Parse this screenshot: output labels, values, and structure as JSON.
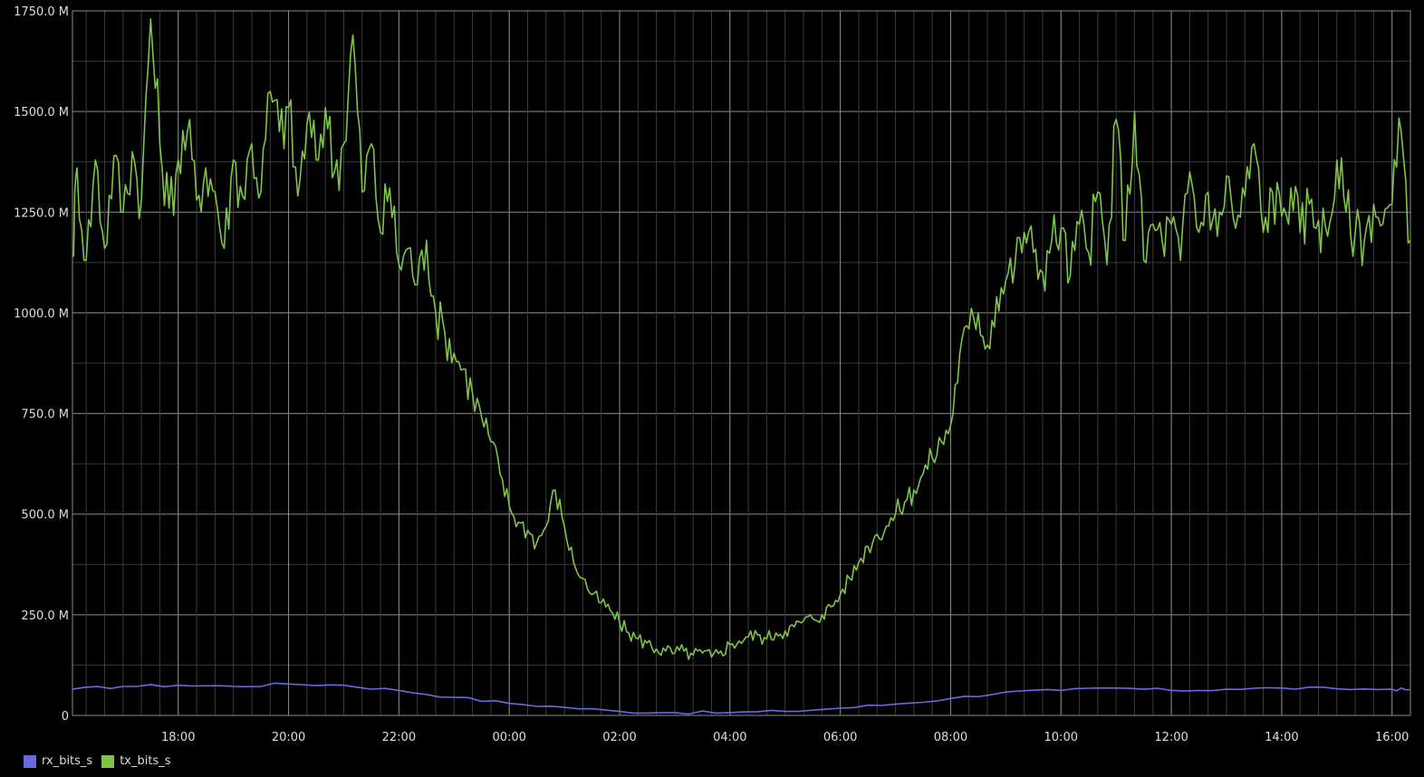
{
  "chart_data": {
    "type": "line",
    "xlabel": "",
    "ylabel": "",
    "ylim": [
      0,
      1750
    ],
    "y_unit": "bits/s (millions)",
    "y_ticks": [
      {
        "value": 0,
        "label": "0"
      },
      {
        "value": 250,
        "label": "250.0 M"
      },
      {
        "value": 500,
        "label": "500.0 M"
      },
      {
        "value": 750,
        "label": "750.0 M"
      },
      {
        "value": 1000,
        "label": "1000.0 M"
      },
      {
        "value": 1250,
        "label": "1250.0 M"
      },
      {
        "value": 1500,
        "label": "1500.0 M"
      },
      {
        "value": 1750,
        "label": "1750.0 M"
      }
    ],
    "x_ticks": [
      "18:00",
      "20:00",
      "22:00",
      "00:00",
      "02:00",
      "04:00",
      "06:00",
      "08:00",
      "10:00",
      "12:00",
      "14:00",
      "16:00"
    ],
    "x_range": [
      "16:05",
      "16:20"
    ],
    "grid": true,
    "legend_position": "bottom-left",
    "series": [
      {
        "name": "rx_bits_s",
        "color": "#6a6ae0",
        "points": [
          [
            "16:05",
            65
          ],
          [
            "17:00",
            72
          ],
          [
            "18:00",
            75
          ],
          [
            "19:00",
            72
          ],
          [
            "20:00",
            78
          ],
          [
            "21:00",
            75
          ],
          [
            "22:00",
            62
          ],
          [
            "23:00",
            45
          ],
          [
            "00:00",
            30
          ],
          [
            "01:00",
            20
          ],
          [
            "02:00",
            10
          ],
          [
            "03:00",
            7
          ],
          [
            "04:00",
            7
          ],
          [
            "05:00",
            10
          ],
          [
            "06:00",
            18
          ],
          [
            "07:00",
            28
          ],
          [
            "08:00",
            42
          ],
          [
            "09:00",
            58
          ],
          [
            "10:00",
            62
          ],
          [
            "11:00",
            68
          ],
          [
            "12:00",
            62
          ],
          [
            "13:00",
            65
          ],
          [
            "14:00",
            68
          ],
          [
            "15:00",
            66
          ],
          [
            "16:00",
            65
          ],
          [
            "16:20",
            64
          ]
        ]
      },
      {
        "name": "tx_bits_s",
        "color": "#7fc44a",
        "points": [
          [
            "16:05",
            1140
          ],
          [
            "16:10",
            1360
          ],
          [
            "16:20",
            1130
          ],
          [
            "16:30",
            1380
          ],
          [
            "16:40",
            1160
          ],
          [
            "16:50",
            1390
          ],
          [
            "17:00",
            1250
          ],
          [
            "17:10",
            1400
          ],
          [
            "17:20",
            1280
          ],
          [
            "17:30",
            1730
          ],
          [
            "17:40",
            1420
          ],
          [
            "17:50",
            1260
          ],
          [
            "18:00",
            1380
          ],
          [
            "18:10",
            1450
          ],
          [
            "18:20",
            1280
          ],
          [
            "18:30",
            1360
          ],
          [
            "18:40",
            1300
          ],
          [
            "18:50",
            1160
          ],
          [
            "19:00",
            1380
          ],
          [
            "19:10",
            1290
          ],
          [
            "19:20",
            1420
          ],
          [
            "19:30",
            1300
          ],
          [
            "19:40",
            1550
          ],
          [
            "19:50",
            1450
          ],
          [
            "20:00",
            1510
          ],
          [
            "20:10",
            1290
          ],
          [
            "20:20",
            1470
          ],
          [
            "20:30",
            1380
          ],
          [
            "20:40",
            1510
          ],
          [
            "20:50",
            1350
          ],
          [
            "21:00",
            1420
          ],
          [
            "21:10",
            1690
          ],
          [
            "21:20",
            1300
          ],
          [
            "21:30",
            1420
          ],
          [
            "21:40",
            1200
          ],
          [
            "21:50",
            1310
          ],
          [
            "22:00",
            1120
          ],
          [
            "22:10",
            1160
          ],
          [
            "22:20",
            1070
          ],
          [
            "22:30",
            1180
          ],
          [
            "22:40",
            1000
          ],
          [
            "22:50",
            950
          ],
          [
            "23:00",
            900
          ],
          [
            "23:10",
            860
          ],
          [
            "23:20",
            800
          ],
          [
            "23:30",
            740
          ],
          [
            "23:40",
            680
          ],
          [
            "23:50",
            600
          ],
          [
            "00:00",
            520
          ],
          [
            "00:10",
            480
          ],
          [
            "00:20",
            460
          ],
          [
            "00:30",
            430
          ],
          [
            "00:40",
            470
          ],
          [
            "00:50",
            560
          ],
          [
            "01:00",
            470
          ],
          [
            "01:10",
            380
          ],
          [
            "01:20",
            340
          ],
          [
            "01:30",
            300
          ],
          [
            "01:40",
            280
          ],
          [
            "01:50",
            260
          ],
          [
            "02:00",
            230
          ],
          [
            "02:10",
            205
          ],
          [
            "02:20",
            190
          ],
          [
            "02:30",
            180
          ],
          [
            "02:40",
            165
          ],
          [
            "02:50",
            160
          ],
          [
            "03:00",
            155
          ],
          [
            "03:10",
            160
          ],
          [
            "03:20",
            150
          ],
          [
            "03:30",
            155
          ],
          [
            "03:40",
            145
          ],
          [
            "03:50",
            160
          ],
          [
            "04:00",
            175
          ],
          [
            "04:10",
            185
          ],
          [
            "04:20",
            195
          ],
          [
            "04:30",
            200
          ],
          [
            "04:40",
            190
          ],
          [
            "04:50",
            205
          ],
          [
            "05:00",
            210
          ],
          [
            "05:10",
            220
          ],
          [
            "05:20",
            235
          ],
          [
            "05:30",
            240
          ],
          [
            "05:40",
            250
          ],
          [
            "05:50",
            270
          ],
          [
            "06:00",
            300
          ],
          [
            "06:10",
            340
          ],
          [
            "06:20",
            380
          ],
          [
            "06:30",
            420
          ],
          [
            "06:40",
            450
          ],
          [
            "06:50",
            470
          ],
          [
            "07:00",
            500
          ],
          [
            "07:10",
            530
          ],
          [
            "07:20",
            560
          ],
          [
            "07:30",
            600
          ],
          [
            "07:40",
            640
          ],
          [
            "07:50",
            680
          ],
          [
            "08:00",
            720
          ],
          [
            "08:10",
            900
          ],
          [
            "08:20",
            960
          ],
          [
            "08:30",
            1000
          ],
          [
            "08:40",
            920
          ],
          [
            "08:50",
            1040
          ],
          [
            "09:00",
            1080
          ],
          [
            "09:10",
            1120
          ],
          [
            "09:20",
            1200
          ],
          [
            "09:30",
            1150
          ],
          [
            "09:40",
            1100
          ],
          [
            "09:50",
            1180
          ],
          [
            "10:00",
            1210
          ],
          [
            "10:10",
            1090
          ],
          [
            "10:20",
            1220
          ],
          [
            "10:30",
            1150
          ],
          [
            "10:40",
            1300
          ],
          [
            "10:50",
            1120
          ],
          [
            "11:00",
            1480
          ],
          [
            "11:10",
            1180
          ],
          [
            "11:20",
            1500
          ],
          [
            "11:30",
            1130
          ],
          [
            "11:40",
            1220
          ],
          [
            "11:50",
            1180
          ],
          [
            "12:00",
            1220
          ],
          [
            "12:10",
            1130
          ],
          [
            "12:20",
            1350
          ],
          [
            "12:30",
            1200
          ],
          [
            "12:40",
            1300
          ],
          [
            "12:50",
            1190
          ],
          [
            "13:00",
            1340
          ],
          [
            "13:10",
            1210
          ],
          [
            "13:20",
            1290
          ],
          [
            "13:30",
            1420
          ],
          [
            "13:40",
            1200
          ],
          [
            "13:50",
            1300
          ],
          [
            "14:00",
            1240
          ],
          [
            "14:10",
            1310
          ],
          [
            "14:20",
            1200
          ],
          [
            "14:30",
            1270
          ],
          [
            "14:40",
            1230
          ],
          [
            "14:50",
            1190
          ],
          [
            "15:00",
            1380
          ],
          [
            "15:10",
            1250
          ],
          [
            "15:20",
            1200
          ],
          [
            "15:30",
            1180
          ],
          [
            "15:40",
            1270
          ],
          [
            "15:50",
            1220
          ],
          [
            "16:00",
            1270
          ],
          [
            "16:10",
            1450
          ],
          [
            "16:20",
            1180
          ]
        ]
      }
    ]
  },
  "legend": [
    {
      "label": "rx_bits_s",
      "color": "#6a6ae0"
    },
    {
      "label": "tx_bits_s",
      "color": "#7fc44a"
    }
  ]
}
